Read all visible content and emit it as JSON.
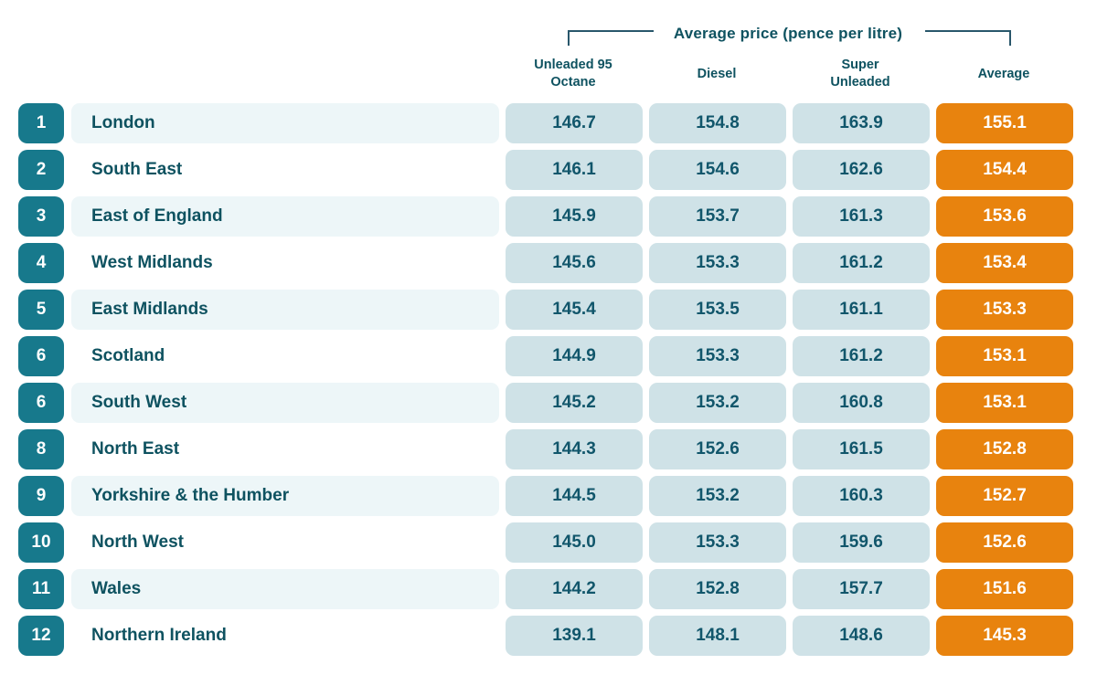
{
  "colors": {
    "badge_teal": "#17798c",
    "text_teal": "#0e5260",
    "cell_blue": "#cfe2e7",
    "row_stripe": "#edf6f8",
    "average_orange": "#e8830e",
    "bracket_line": "#29576b"
  },
  "header": {
    "title": "Average price (pence per litre)",
    "columns": [
      {
        "line1": "Unleaded 95",
        "line2": "Octane"
      },
      {
        "line1": "Diesel",
        "line2": ""
      },
      {
        "line1": "Super",
        "line2": "Unleaded"
      },
      {
        "line1": "Average",
        "line2": ""
      }
    ]
  },
  "rows": [
    {
      "rank": "1",
      "region": "London",
      "unleaded": "146.7",
      "diesel": "154.8",
      "super_unleaded": "163.9",
      "average": "155.1"
    },
    {
      "rank": "2",
      "region": "South East",
      "unleaded": "146.1",
      "diesel": "154.6",
      "super_unleaded": "162.6",
      "average": "154.4"
    },
    {
      "rank": "3",
      "region": "East of England",
      "unleaded": "145.9",
      "diesel": "153.7",
      "super_unleaded": "161.3",
      "average": "153.6"
    },
    {
      "rank": "4",
      "region": "West Midlands",
      "unleaded": "145.6",
      "diesel": "153.3",
      "super_unleaded": "161.2",
      "average": "153.4"
    },
    {
      "rank": "5",
      "region": "East Midlands",
      "unleaded": "145.4",
      "diesel": "153.5",
      "super_unleaded": "161.1",
      "average": "153.3"
    },
    {
      "rank": "6",
      "region": "Scotland",
      "unleaded": "144.9",
      "diesel": "153.3",
      "super_unleaded": "161.2",
      "average": "153.1"
    },
    {
      "rank": "6",
      "region": "South West",
      "unleaded": "145.2",
      "diesel": "153.2",
      "super_unleaded": "160.8",
      "average": "153.1"
    },
    {
      "rank": "8",
      "region": "North East",
      "unleaded": "144.3",
      "diesel": "152.6",
      "super_unleaded": "161.5",
      "average": "152.8"
    },
    {
      "rank": "9",
      "region": "Yorkshire & the Humber",
      "unleaded": "144.5",
      "diesel": "153.2",
      "super_unleaded": "160.3",
      "average": "152.7"
    },
    {
      "rank": "10",
      "region": "North West",
      "unleaded": "145.0",
      "diesel": "153.3",
      "super_unleaded": "159.6",
      "average": "152.6"
    },
    {
      "rank": "11",
      "region": "Wales",
      "unleaded": "144.2",
      "diesel": "152.8",
      "super_unleaded": "157.7",
      "average": "151.6"
    },
    {
      "rank": "12",
      "region": "Northern Ireland",
      "unleaded": "139.1",
      "diesel": "148.1",
      "super_unleaded": "148.6",
      "average": "145.3"
    }
  ],
  "chart_data": {
    "type": "table",
    "title": "Average price (pence per litre)",
    "columns": [
      "Rank",
      "Region",
      "Unleaded 95 Octane",
      "Diesel",
      "Super Unleaded",
      "Average"
    ],
    "rows": [
      [
        1,
        "London",
        146.7,
        154.8,
        163.9,
        155.1
      ],
      [
        2,
        "South East",
        146.1,
        154.6,
        162.6,
        154.4
      ],
      [
        3,
        "East of England",
        145.9,
        153.7,
        161.3,
        153.6
      ],
      [
        4,
        "West Midlands",
        145.6,
        153.3,
        161.2,
        153.4
      ],
      [
        5,
        "East Midlands",
        145.4,
        153.5,
        161.1,
        153.3
      ],
      [
        6,
        "Scotland",
        144.9,
        153.3,
        161.2,
        153.1
      ],
      [
        6,
        "South West",
        145.2,
        153.2,
        160.8,
        153.1
      ],
      [
        8,
        "North East",
        144.3,
        152.6,
        161.5,
        152.8
      ],
      [
        9,
        "Yorkshire & the Humber",
        144.5,
        153.2,
        160.3,
        152.7
      ],
      [
        10,
        "North West",
        145.0,
        153.3,
        159.6,
        152.6
      ],
      [
        11,
        "Wales",
        144.2,
        152.8,
        157.7,
        151.6
      ],
      [
        12,
        "Northern Ireland",
        139.1,
        148.1,
        148.6,
        145.3
      ]
    ]
  }
}
